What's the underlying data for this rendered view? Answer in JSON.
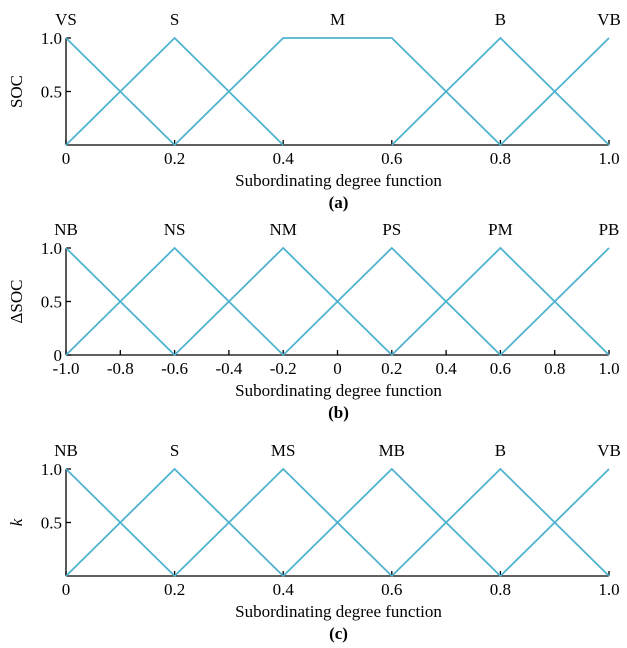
{
  "colors": {
    "membership_line": "#4fb3cf",
    "axis": "#000000",
    "background": "#ffffff"
  },
  "chart_data": [
    {
      "type": "line",
      "caption": "(a)",
      "xlabel": "Subordinating degree function",
      "ylabel": "SOC",
      "ylabel_italic": false,
      "xlim": [
        0,
        1.0
      ],
      "ylim": [
        0,
        1.0
      ],
      "x_ticks": [
        0,
        0.2,
        0.4,
        0.6,
        0.8,
        1.0
      ],
      "x_tick_labels": [
        "0",
        "0.2",
        "0.4",
        "0.6",
        "0.8",
        "1.0"
      ],
      "y_ticks": [
        0.5,
        1.0
      ],
      "y_tick_labels": [
        "0.5",
        "1.0"
      ],
      "grid": false,
      "series": [
        {
          "name": "VS",
          "x": [
            0,
            0.2
          ],
          "y": [
            1,
            0
          ]
        },
        {
          "name": "S",
          "x": [
            0,
            0.2,
            0.4
          ],
          "y": [
            0,
            1,
            0
          ]
        },
        {
          "name": "M",
          "x": [
            0.2,
            0.4,
            0.6,
            0.8
          ],
          "y": [
            0,
            1,
            1,
            0
          ]
        },
        {
          "name": "B",
          "x": [
            0.6,
            0.8,
            1.0
          ],
          "y": [
            0,
            1,
            0
          ]
        },
        {
          "name": "VB",
          "x": [
            0.8,
            1.0
          ],
          "y": [
            0,
            1
          ]
        }
      ]
    },
    {
      "type": "line",
      "caption": "(b)",
      "xlabel": "Subordinating degree function",
      "ylabel": "ΔSOC",
      "ylabel_italic": false,
      "xlim": [
        -1.0,
        1.0
      ],
      "ylim": [
        0,
        1.0
      ],
      "x_ticks": [
        -1.0,
        -0.8,
        -0.6,
        -0.4,
        -0.2,
        0,
        0.2,
        0.4,
        0.6,
        0.8,
        1.0
      ],
      "x_tick_labels": [
        "-1.0",
        "-0.8",
        "-0.6",
        "-0.4",
        "-0.2",
        "0",
        "0.2",
        "0.4",
        "0.6",
        "0.8",
        "1.0"
      ],
      "y_ticks": [
        0,
        0.5,
        1.0
      ],
      "y_tick_labels": [
        "0",
        "0.5",
        "1.0"
      ],
      "grid": false,
      "series": [
        {
          "name": "NB",
          "x": [
            -1.0,
            -0.6
          ],
          "y": [
            1,
            0
          ]
        },
        {
          "name": "NS",
          "x": [
            -1.0,
            -0.6,
            -0.2
          ],
          "y": [
            0,
            1,
            0
          ]
        },
        {
          "name": "NM",
          "x": [
            -0.6,
            -0.2,
            0.2
          ],
          "y": [
            0,
            1,
            0
          ]
        },
        {
          "name": "PS",
          "x": [
            -0.2,
            0.2,
            0.6
          ],
          "y": [
            0,
            1,
            0
          ]
        },
        {
          "name": "PM",
          "x": [
            0.2,
            0.6,
            1.0
          ],
          "y": [
            0,
            1,
            0
          ]
        },
        {
          "name": "PB",
          "x": [
            0.6,
            1.0
          ],
          "y": [
            0,
            1
          ]
        }
      ]
    },
    {
      "type": "line",
      "caption": "(c)",
      "xlabel": "Subordinating degree function",
      "ylabel": "k",
      "ylabel_italic": true,
      "xlim": [
        0,
        1.0
      ],
      "ylim": [
        0,
        1.0
      ],
      "x_ticks": [
        0,
        0.2,
        0.4,
        0.6,
        0.8,
        1.0
      ],
      "x_tick_labels": [
        "0",
        "0.2",
        "0.4",
        "0.6",
        "0.8",
        "1.0"
      ],
      "y_ticks": [
        0.5,
        1.0
      ],
      "y_tick_labels": [
        "0.5",
        "1.0"
      ],
      "grid": false,
      "series": [
        {
          "name": "NB",
          "x": [
            0,
            0.2
          ],
          "y": [
            1,
            0
          ]
        },
        {
          "name": "S",
          "x": [
            0,
            0.2,
            0.4
          ],
          "y": [
            0,
            1,
            0
          ]
        },
        {
          "name": "MS",
          "x": [
            0.2,
            0.4,
            0.6
          ],
          "y": [
            0,
            1,
            0
          ]
        },
        {
          "name": "MB",
          "x": [
            0.4,
            0.6,
            0.8
          ],
          "y": [
            0,
            1,
            0
          ]
        },
        {
          "name": "B",
          "x": [
            0.6,
            0.8,
            1.0
          ],
          "y": [
            0,
            1,
            0
          ]
        },
        {
          "name": "VB",
          "x": [
            0.8,
            1.0
          ],
          "y": [
            0,
            1
          ]
        }
      ]
    }
  ]
}
